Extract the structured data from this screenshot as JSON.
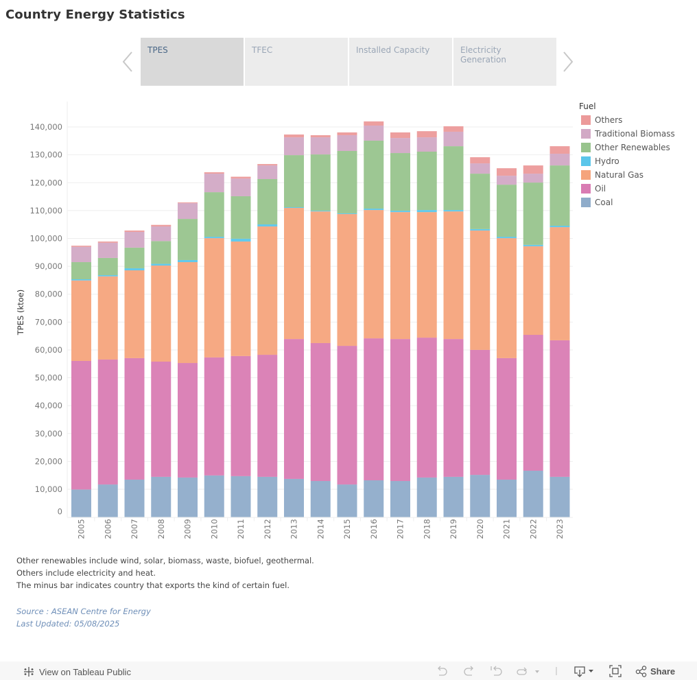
{
  "page": {
    "title": "Country Energy Statistics"
  },
  "tabs": [
    {
      "label": "TPES",
      "active": true
    },
    {
      "label": "TFEC",
      "active": false
    },
    {
      "label": "Installed Capacity",
      "active": false
    },
    {
      "label": "Electricity Generation",
      "active": false
    }
  ],
  "nav": {
    "prev_icon": "chevron-left-icon",
    "next_icon": "chevron-right-icon"
  },
  "legend": {
    "title": "Fuel",
    "items": [
      {
        "label": "Others",
        "color": "#ec9a9a"
      },
      {
        "label": "Traditional Biomass",
        "color": "#d2a9c5"
      },
      {
        "label": "Other Renewables",
        "color": "#98c48d"
      },
      {
        "label": "Hydro",
        "color": "#5bc6ea"
      },
      {
        "label": "Natural Gas",
        "color": "#f5a47c"
      },
      {
        "label": "Oil",
        "color": "#d97cb3"
      },
      {
        "label": "Coal",
        "color": "#8facca"
      }
    ]
  },
  "chart_data": {
    "type": "bar",
    "stacked": true,
    "title": "",
    "xlabel": "",
    "ylabel": "TPES (ktoe)",
    "ylim": [
      0,
      150000
    ],
    "yticks": [
      0,
      10000,
      20000,
      30000,
      40000,
      50000,
      60000,
      70000,
      80000,
      90000,
      100000,
      110000,
      120000,
      130000,
      140000
    ],
    "ytick_labels": [
      "0",
      "10,000",
      "20,000",
      "30,000",
      "40,000",
      "50,000",
      "60,000",
      "70,000",
      "80,000",
      "90,000",
      "100,000",
      "110,000",
      "120,000",
      "130,000",
      "140,000"
    ],
    "grid": true,
    "legend_position": "right",
    "categories": [
      "2005",
      "2006",
      "2007",
      "2008",
      "2009",
      "2010",
      "2011",
      "2012",
      "2013",
      "2014",
      "2015",
      "2016",
      "2017",
      "2018",
      "2019",
      "2020",
      "2021",
      "2022",
      "2023"
    ],
    "series": [
      {
        "name": "Coal",
        "color": "#8facca",
        "values": [
          9900,
          11700,
          13450,
          14450,
          14200,
          14950,
          14700,
          14450,
          13700,
          12950,
          11700,
          13200,
          12950,
          14200,
          14450,
          15150,
          13450,
          16650,
          14450
        ]
      },
      {
        "name": "Oil",
        "color": "#d97cb3",
        "values": [
          46150,
          44850,
          43600,
          41350,
          41100,
          42350,
          43100,
          43800,
          50200,
          49500,
          49750,
          50950,
          50950,
          50200,
          49450,
          44850,
          43600,
          48750,
          49000
        ]
      },
      {
        "name": "Natural Gas",
        "color": "#f5a47c",
        "values": [
          28880,
          29850,
          31500,
          34470,
          36200,
          42800,
          41100,
          46050,
          47050,
          47250,
          47300,
          46050,
          45550,
          45050,
          45800,
          42850,
          43050,
          31800,
          40600
        ]
      },
      {
        "name": "Hydro",
        "color": "#5bc6ea",
        "values": [
          420,
          430,
          750,
          630,
          750,
          500,
          1000,
          750,
          250,
          250,
          250,
          500,
          500,
          750,
          500,
          500,
          500,
          500,
          500
        ]
      },
      {
        "name": "Other Renewables",
        "color": "#98c48d",
        "values": [
          6150,
          6170,
          7400,
          8150,
          14750,
          16000,
          15250,
          16250,
          18700,
          20200,
          22400,
          24400,
          20700,
          20950,
          22900,
          19900,
          18700,
          22350,
          21650
        ]
      },
      {
        "name": "Traditional Biomass",
        "color": "#d2a9c5",
        "values": [
          5500,
          5450,
          5650,
          5250,
          5650,
          6650,
          6350,
          4900,
          6400,
          6150,
          5650,
          5400,
          5400,
          5150,
          5200,
          3700,
          3200,
          3200,
          4200
        ]
      },
      {
        "name": "Others",
        "color": "#ec9a9a",
        "values": [
          400,
          450,
          500,
          570,
          280,
          500,
          650,
          500,
          1000,
          750,
          1000,
          1500,
          2000,
          2200,
          1950,
          2200,
          2700,
          2950,
          2700
        ]
      }
    ]
  },
  "notes": [
    "Other renewables include wind, solar, biomass, waste, biofuel, geothermal.",
    "Others include electricity and heat.",
    "The minus bar indicates country that exports the kind of certain fuel."
  ],
  "source": {
    "source_text": "Source : ASEAN Centre for Energy",
    "updated_text": "Last Updated: 05/08/2025"
  },
  "footer": {
    "view_label": "View on Tableau Public",
    "share_label": "Share",
    "icons": [
      "undo-icon",
      "redo-icon",
      "revert-icon",
      "refresh-icon",
      "download-icon",
      "fullscreen-icon",
      "share-icon"
    ]
  }
}
